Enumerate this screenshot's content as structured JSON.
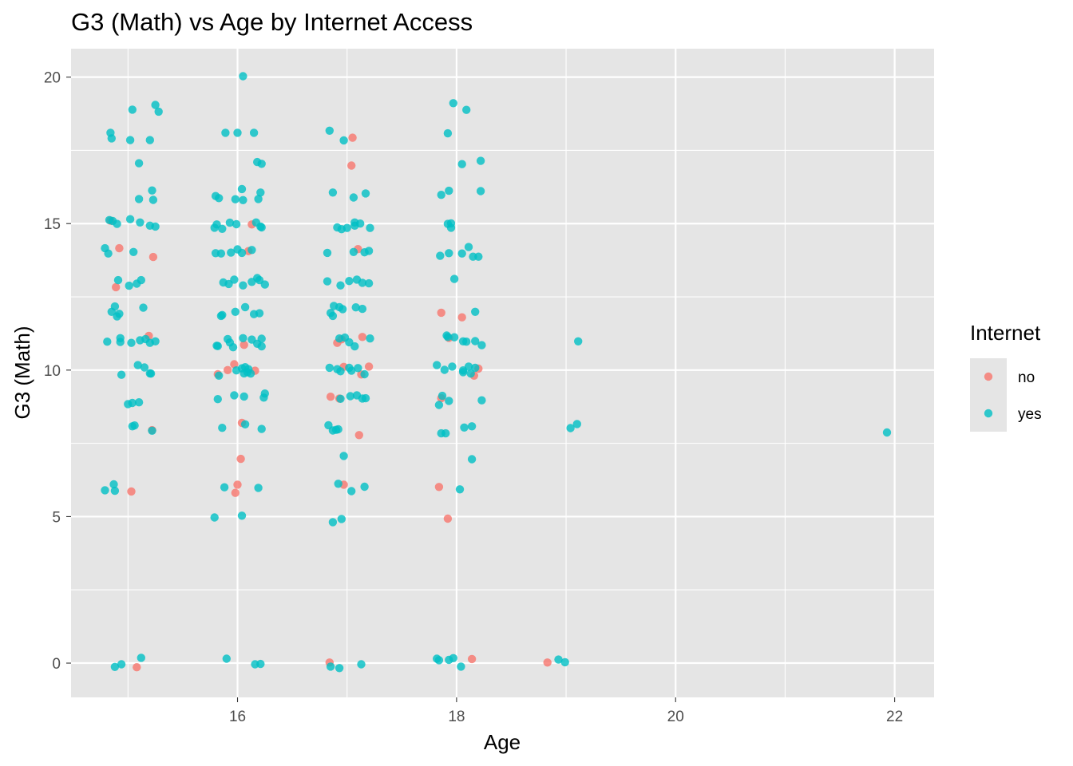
{
  "chart_data": {
    "type": "scatter",
    "title": "G3 (Math) vs Age by Internet Access",
    "xlabel": "Age",
    "ylabel": "G3 (Math)",
    "xlim": [
      14.48,
      22.36
    ],
    "ylim": [
      -1.17,
      20.97
    ],
    "x_ticks": [
      16,
      18,
      20,
      22
    ],
    "x_minor_ticks": [
      15,
      17,
      19,
      21
    ],
    "y_ticks": [
      0,
      5,
      10,
      15,
      20
    ],
    "y_minor_ticks": [
      2.5,
      7.5,
      12.5,
      17.5
    ],
    "grid": true,
    "jitter": true,
    "legend": {
      "title": "Internet",
      "position": "right"
    },
    "series": [
      {
        "name": "no",
        "color": "#F8766D",
        "points": [
          [
            14.84,
            15.1
          ],
          [
            14.92,
            14.16
          ],
          [
            14.89,
            12.83
          ],
          [
            15.23,
            13.86
          ],
          [
            15.19,
            11.17
          ],
          [
            15.22,
            7.95
          ],
          [
            15.03,
            5.86
          ],
          [
            15.08,
            -0.14
          ],
          [
            15.82,
            9.86
          ],
          [
            15.91,
            10.0
          ],
          [
            15.97,
            10.2
          ],
          [
            16.06,
            10.86
          ],
          [
            16.16,
            9.98
          ],
          [
            16.04,
            8.2
          ],
          [
            16.03,
            6.97
          ],
          [
            16.0,
            6.09
          ],
          [
            15.98,
            5.81
          ],
          [
            16.13,
            14.97
          ],
          [
            16.1,
            14.06
          ],
          [
            17.05,
            17.93
          ],
          [
            17.04,
            16.98
          ],
          [
            17.1,
            14.13
          ],
          [
            17.14,
            11.13
          ],
          [
            16.95,
            11.05
          ],
          [
            16.91,
            10.93
          ],
          [
            16.97,
            10.11
          ],
          [
            17.2,
            10.12
          ],
          [
            17.13,
            9.85
          ],
          [
            16.85,
            9.09
          ],
          [
            16.93,
            9.03
          ],
          [
            17.11,
            7.78
          ],
          [
            16.97,
            6.09
          ],
          [
            16.84,
            0.02
          ],
          [
            17.86,
            11.96
          ],
          [
            18.05,
            11.8
          ],
          [
            17.93,
            11.1
          ],
          [
            17.86,
            9.04
          ],
          [
            17.84,
            6.01
          ],
          [
            17.92,
            4.93
          ],
          [
            18.16,
            9.81
          ],
          [
            18.2,
            10.05
          ],
          [
            18.14,
            0.14
          ],
          [
            18.83,
            0.02
          ]
        ]
      },
      {
        "name": "yes",
        "color": "#00BFC4",
        "points": [
          [
            14.84,
            18.1
          ],
          [
            14.85,
            17.91
          ],
          [
            15.04,
            18.89
          ],
          [
            15.25,
            19.05
          ],
          [
            15.28,
            18.82
          ],
          [
            15.2,
            17.85
          ],
          [
            15.02,
            17.85
          ],
          [
            15.1,
            17.06
          ],
          [
            15.22,
            16.13
          ],
          [
            15.1,
            15.84
          ],
          [
            15.23,
            15.81
          ],
          [
            14.83,
            15.12
          ],
          [
            14.86,
            15.09
          ],
          [
            15.02,
            15.15
          ],
          [
            15.11,
            15.04
          ],
          [
            15.2,
            14.93
          ],
          [
            15.25,
            14.9
          ],
          [
            14.9,
            14.99
          ],
          [
            14.79,
            14.16
          ],
          [
            14.82,
            13.98
          ],
          [
            15.05,
            14.03
          ],
          [
            14.91,
            13.07
          ],
          [
            15.08,
            12.95
          ],
          [
            15.12,
            13.07
          ],
          [
            15.01,
            12.88
          ],
          [
            14.88,
            12.17
          ],
          [
            14.85,
            11.99
          ],
          [
            15.14,
            12.13
          ],
          [
            14.92,
            11.92
          ],
          [
            14.9,
            11.83
          ],
          [
            14.81,
            10.97
          ],
          [
            14.93,
            11.09
          ],
          [
            14.93,
            10.96
          ],
          [
            15.03,
            10.93
          ],
          [
            15.11,
            11.02
          ],
          [
            15.16,
            11.06
          ],
          [
            15.2,
            10.93
          ],
          [
            15.25,
            10.98
          ],
          [
            15.09,
            10.17
          ],
          [
            15.15,
            10.09
          ],
          [
            15.2,
            9.89
          ],
          [
            15.21,
            9.88
          ],
          [
            14.94,
            9.84
          ],
          [
            15.0,
            8.84
          ],
          [
            15.04,
            8.88
          ],
          [
            15.1,
            8.9
          ],
          [
            15.06,
            8.11
          ],
          [
            15.04,
            8.08
          ],
          [
            15.22,
            7.93
          ],
          [
            14.87,
            6.1
          ],
          [
            14.79,
            5.9
          ],
          [
            14.88,
            5.88
          ],
          [
            15.12,
            0.18
          ],
          [
            14.94,
            -0.04
          ],
          [
            14.88,
            -0.13
          ],
          [
            16.05,
            20.03
          ],
          [
            15.89,
            18.1
          ],
          [
            16.0,
            18.1
          ],
          [
            16.15,
            18.1
          ],
          [
            16.18,
            17.1
          ],
          [
            16.22,
            17.04
          ],
          [
            15.8,
            15.94
          ],
          [
            15.83,
            15.87
          ],
          [
            16.04,
            16.18
          ],
          [
            16.21,
            16.06
          ],
          [
            15.98,
            15.83
          ],
          [
            16.05,
            15.8
          ],
          [
            16.19,
            15.84
          ],
          [
            15.79,
            14.86
          ],
          [
            15.81,
            14.97
          ],
          [
            15.86,
            14.82
          ],
          [
            15.93,
            15.03
          ],
          [
            15.99,
            14.98
          ],
          [
            16.17,
            15.04
          ],
          [
            16.21,
            14.9
          ],
          [
            16.22,
            14.87
          ],
          [
            15.8,
            13.99
          ],
          [
            15.85,
            13.98
          ],
          [
            15.94,
            14.01
          ],
          [
            16.0,
            14.12
          ],
          [
            16.04,
            14.0
          ],
          [
            16.13,
            14.1
          ],
          [
            15.87,
            12.99
          ],
          [
            15.92,
            12.94
          ],
          [
            15.97,
            13.09
          ],
          [
            16.05,
            12.89
          ],
          [
            16.13,
            13.01
          ],
          [
            16.18,
            13.14
          ],
          [
            16.2,
            13.07
          ],
          [
            16.25,
            12.92
          ],
          [
            15.86,
            11.88
          ],
          [
            15.85,
            11.85
          ],
          [
            15.98,
            11.99
          ],
          [
            16.07,
            12.15
          ],
          [
            16.15,
            11.91
          ],
          [
            16.2,
            11.94
          ],
          [
            15.81,
            10.83
          ],
          [
            15.82,
            10.82
          ],
          [
            15.91,
            11.06
          ],
          [
            15.93,
            10.94
          ],
          [
            15.96,
            10.78
          ],
          [
            16.05,
            11.09
          ],
          [
            16.13,
            11.04
          ],
          [
            16.22,
            11.07
          ],
          [
            16.18,
            10.9
          ],
          [
            16.22,
            10.81
          ],
          [
            15.99,
            9.99
          ],
          [
            16.04,
            10.06
          ],
          [
            16.07,
            10.1
          ],
          [
            16.09,
            9.93
          ],
          [
            16.12,
            9.88
          ],
          [
            16.06,
            9.89
          ],
          [
            16.1,
            10.03
          ],
          [
            15.83,
            9.81
          ],
          [
            15.82,
            9.01
          ],
          [
            15.97,
            9.14
          ],
          [
            16.06,
            9.1
          ],
          [
            16.24,
            9.06
          ],
          [
            16.25,
            9.2
          ],
          [
            15.86,
            8.03
          ],
          [
            16.07,
            8.15
          ],
          [
            16.22,
            7.99
          ],
          [
            15.88,
            6.0
          ],
          [
            16.19,
            5.98
          ],
          [
            16.04,
            5.03
          ],
          [
            15.79,
            4.97
          ],
          [
            15.9,
            0.15
          ],
          [
            16.16,
            -0.04
          ],
          [
            16.21,
            -0.03
          ],
          [
            16.84,
            18.17
          ],
          [
            16.97,
            17.84
          ],
          [
            16.87,
            16.06
          ],
          [
            17.06,
            15.89
          ],
          [
            17.17,
            16.03
          ],
          [
            16.91,
            14.87
          ],
          [
            16.95,
            14.81
          ],
          [
            17.0,
            14.85
          ],
          [
            17.07,
            14.93
          ],
          [
            17.07,
            15.04
          ],
          [
            17.12,
            15.0
          ],
          [
            17.21,
            14.85
          ],
          [
            16.82,
            14.0
          ],
          [
            17.06,
            14.03
          ],
          [
            17.16,
            14.02
          ],
          [
            17.2,
            14.07
          ],
          [
            16.82,
            13.03
          ],
          [
            16.94,
            12.89
          ],
          [
            17.02,
            13.04
          ],
          [
            17.09,
            13.09
          ],
          [
            17.14,
            12.98
          ],
          [
            17.2,
            12.96
          ],
          [
            16.88,
            12.19
          ],
          [
            16.93,
            12.15
          ],
          [
            16.96,
            12.08
          ],
          [
            17.08,
            12.14
          ],
          [
            17.14,
            12.09
          ],
          [
            16.85,
            11.95
          ],
          [
            16.87,
            11.85
          ],
          [
            16.93,
            11.08
          ],
          [
            16.98,
            11.11
          ],
          [
            17.02,
            10.95
          ],
          [
            17.07,
            10.81
          ],
          [
            17.21,
            11.08
          ],
          [
            16.84,
            10.08
          ],
          [
            16.91,
            10.03
          ],
          [
            16.94,
            9.96
          ],
          [
            17.02,
            10.08
          ],
          [
            17.04,
            9.98
          ],
          [
            17.1,
            10.07
          ],
          [
            17.16,
            9.86
          ],
          [
            16.94,
            9.02
          ],
          [
            17.03,
            9.11
          ],
          [
            17.09,
            9.14
          ],
          [
            17.14,
            9.03
          ],
          [
            17.17,
            9.04
          ],
          [
            16.83,
            8.12
          ],
          [
            16.87,
            7.94
          ],
          [
            16.9,
            7.96
          ],
          [
            16.92,
            7.98
          ],
          [
            16.97,
            7.07
          ],
          [
            16.92,
            6.12
          ],
          [
            17.04,
            5.87
          ],
          [
            17.16,
            6.02
          ],
          [
            16.87,
            4.81
          ],
          [
            16.95,
            4.92
          ],
          [
            16.85,
            -0.12
          ],
          [
            16.93,
            -0.17
          ],
          [
            17.13,
            -0.04
          ],
          [
            17.97,
            19.11
          ],
          [
            18.09,
            18.88
          ],
          [
            17.92,
            18.08
          ],
          [
            18.22,
            17.14
          ],
          [
            18.05,
            17.03
          ],
          [
            18.22,
            16.11
          ],
          [
            17.86,
            15.98
          ],
          [
            17.93,
            16.12
          ],
          [
            17.92,
            14.99
          ],
          [
            17.95,
            15.01
          ],
          [
            17.95,
            14.86
          ],
          [
            18.11,
            14.2
          ],
          [
            17.85,
            13.9
          ],
          [
            17.93,
            13.99
          ],
          [
            18.05,
            13.98
          ],
          [
            18.15,
            13.87
          ],
          [
            18.2,
            13.87
          ],
          [
            17.98,
            13.11
          ],
          [
            18.17,
            11.99
          ],
          [
            17.91,
            11.18
          ],
          [
            17.92,
            11.13
          ],
          [
            17.98,
            11.12
          ],
          [
            18.06,
            10.98
          ],
          [
            18.09,
            10.97
          ],
          [
            18.17,
            10.99
          ],
          [
            18.23,
            10.85
          ],
          [
            17.82,
            10.17
          ],
          [
            17.89,
            10.01
          ],
          [
            17.96,
            10.12
          ],
          [
            18.06,
            9.99
          ],
          [
            18.06,
            9.93
          ],
          [
            18.11,
            10.12
          ],
          [
            18.17,
            10.08
          ],
          [
            18.13,
            9.88
          ],
          [
            17.87,
            9.12
          ],
          [
            17.93,
            8.95
          ],
          [
            18.23,
            8.97
          ],
          [
            17.84,
            8.81
          ],
          [
            17.86,
            7.84
          ],
          [
            17.9,
            7.84
          ],
          [
            18.07,
            8.04
          ],
          [
            18.14,
            8.08
          ],
          [
            18.14,
            6.96
          ],
          [
            18.03,
            5.93
          ],
          [
            17.82,
            0.15
          ],
          [
            17.84,
            0.1
          ],
          [
            17.93,
            0.11
          ],
          [
            17.97,
            0.17
          ],
          [
            18.04,
            -0.12
          ],
          [
            18.93,
            0.12
          ],
          [
            18.99,
            0.03
          ],
          [
            19.11,
            10.98
          ],
          [
            19.04,
            8.02
          ],
          [
            19.1,
            8.16
          ],
          [
            21.93,
            7.87
          ]
        ]
      }
    ]
  },
  "colors": {
    "panel_background": "#E5E5E5",
    "grid": "#FFFFFF",
    "page_background": "#FFFFFF"
  }
}
